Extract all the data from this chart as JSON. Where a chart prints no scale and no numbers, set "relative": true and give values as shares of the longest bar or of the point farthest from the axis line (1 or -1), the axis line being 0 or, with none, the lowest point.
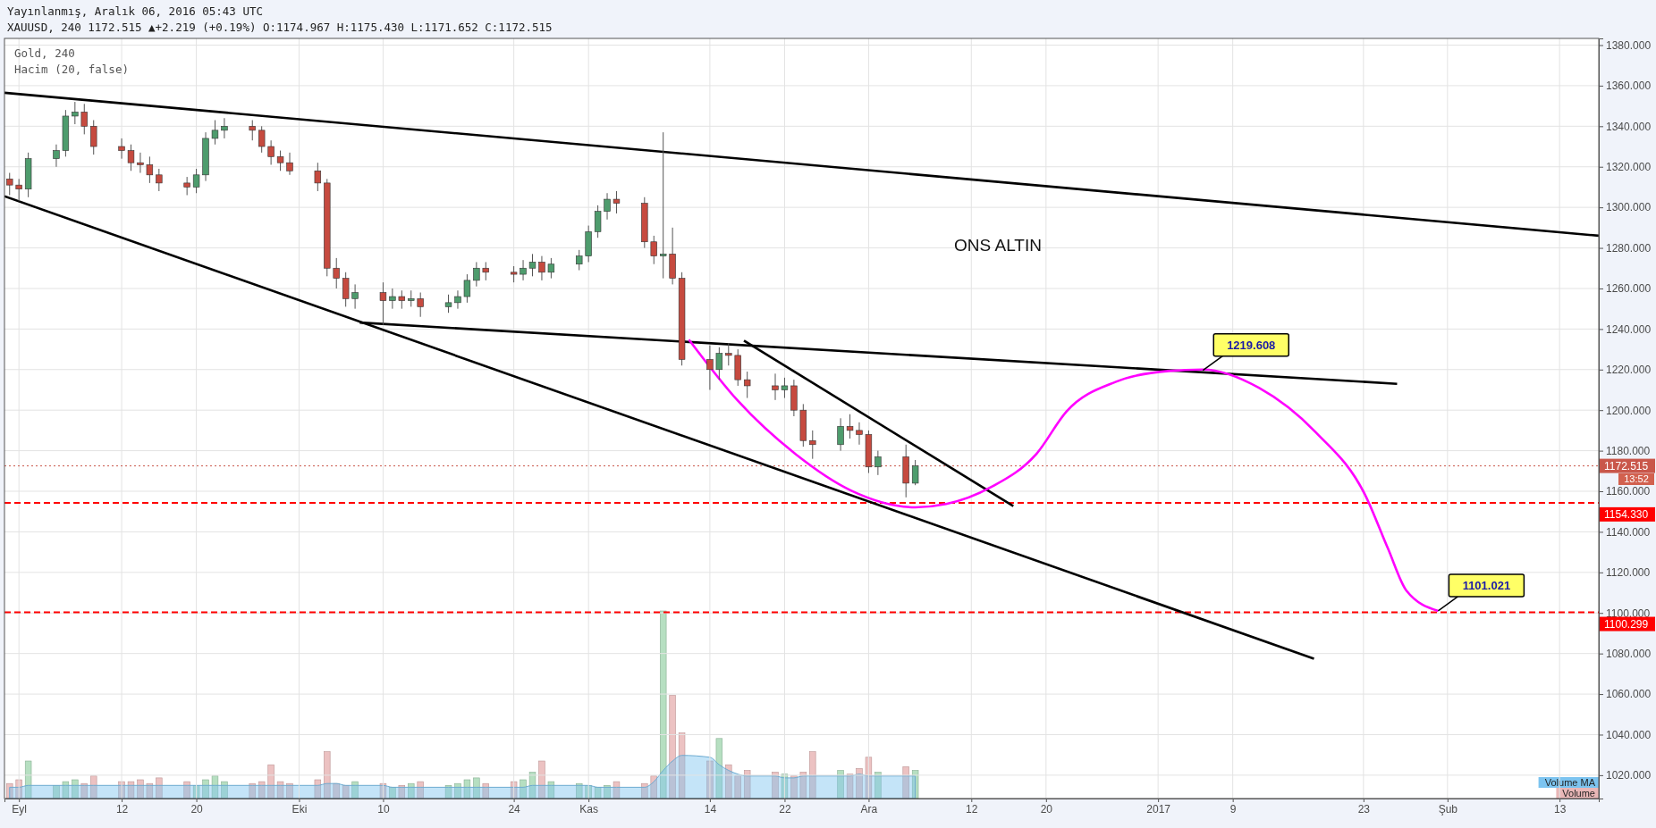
{
  "chart_data": [
    {
      "type": "candlestick",
      "title": "Yayınlanmış, Aralık 06, 2016 05:43 UTC",
      "subtitle": "XAUUSD, 240 1172.515 ▲+2.219 (+0.19%) O:1174.967 H:1175.430 L:1171.652 C:1172.515",
      "x": [
        "2016-08-31",
        "2016-09-01",
        "2016-09-02",
        "2016-09-05",
        "2016-09-06",
        "2016-09-07",
        "2016-09-08",
        "2016-09-09",
        "2016-09-12",
        "2016-09-13",
        "2016-09-14",
        "2016-09-15",
        "2016-09-16",
        "2016-09-19",
        "2016-09-20",
        "2016-09-21",
        "2016-09-22",
        "2016-09-23",
        "2016-09-26",
        "2016-09-27",
        "2016-09-28",
        "2016-09-29",
        "2016-09-30",
        "2016-10-03",
        "2016-10-04",
        "2016-10-05",
        "2016-10-06",
        "2016-10-07",
        "2016-10-10",
        "2016-10-11",
        "2016-10-12",
        "2016-10-13",
        "2016-10-14",
        "2016-10-17",
        "2016-10-18",
        "2016-10-19",
        "2016-10-20",
        "2016-10-21",
        "2016-10-24",
        "2016-10-25",
        "2016-10-26",
        "2016-10-27",
        "2016-10-28",
        "2016-10-31",
        "2016-11-01",
        "2016-11-02",
        "2016-11-03",
        "2016-11-04",
        "2016-11-07",
        "2016-11-08",
        "2016-11-09",
        "2016-11-10",
        "2016-11-11",
        "2016-11-14",
        "2016-11-15",
        "2016-11-16",
        "2016-11-17",
        "2016-11-18",
        "2016-11-21",
        "2016-11-22",
        "2016-11-23",
        "2016-11-24",
        "2016-11-25",
        "2016-11-28",
        "2016-11-29",
        "2016-11-30",
        "2016-12-01",
        "2016-12-02",
        "2016-12-05",
        "2016-12-06"
      ],
      "ohlc": [
        [
          1314,
          1317,
          1306,
          1311
        ],
        [
          1311,
          1314,
          1303,
          1309
        ],
        [
          1309,
          1327,
          1305,
          1324
        ],
        [
          1324,
          1331,
          1320,
          1328
        ],
        [
          1328,
          1348,
          1325,
          1345
        ],
        [
          1345,
          1352,
          1341,
          1347
        ],
        [
          1347,
          1351,
          1336,
          1340
        ],
        [
          1340,
          1343,
          1326,
          1330
        ],
        [
          1330,
          1334,
          1324,
          1328
        ],
        [
          1328,
          1331,
          1318,
          1322
        ],
        [
          1322,
          1327,
          1317,
          1321
        ],
        [
          1321,
          1325,
          1312,
          1316
        ],
        [
          1316,
          1319,
          1308,
          1312
        ],
        [
          1312,
          1315,
          1306,
          1310
        ],
        [
          1310,
          1319,
          1307,
          1316
        ],
        [
          1316,
          1337,
          1313,
          1334
        ],
        [
          1334,
          1343,
          1331,
          1338
        ],
        [
          1338,
          1344,
          1334,
          1340
        ],
        [
          1340,
          1343,
          1333,
          1338
        ],
        [
          1338,
          1340,
          1327,
          1330
        ],
        [
          1330,
          1333,
          1321,
          1325
        ],
        [
          1325,
          1328,
          1318,
          1322
        ],
        [
          1322,
          1327,
          1316,
          1318
        ],
        [
          1318,
          1322,
          1308,
          1312
        ],
        [
          1312,
          1314,
          1266,
          1270
        ],
        [
          1270,
          1275,
          1260,
          1265
        ],
        [
          1265,
          1268,
          1251,
          1255
        ],
        [
          1255,
          1262,
          1250,
          1258
        ],
        [
          1258,
          1263,
          1242,
          1254
        ],
        [
          1254,
          1260,
          1250,
          1256
        ],
        [
          1256,
          1259,
          1250,
          1254
        ],
        [
          1254,
          1259,
          1251,
          1255
        ],
        [
          1255,
          1258,
          1246,
          1251
        ],
        [
          1251,
          1257,
          1248,
          1253
        ],
        [
          1253,
          1259,
          1250,
          1256
        ],
        [
          1256,
          1267,
          1253,
          1264
        ],
        [
          1264,
          1273,
          1261,
          1270
        ],
        [
          1270,
          1273,
          1264,
          1268
        ],
        [
          1268,
          1271,
          1263,
          1267
        ],
        [
          1267,
          1274,
          1264,
          1270
        ],
        [
          1270,
          1277,
          1266,
          1273
        ],
        [
          1273,
          1276,
          1264,
          1268
        ],
        [
          1268,
          1275,
          1265,
          1272
        ],
        [
          1272,
          1279,
          1269,
          1276
        ],
        [
          1276,
          1291,
          1273,
          1288
        ],
        [
          1288,
          1301,
          1285,
          1298
        ],
        [
          1298,
          1307,
          1294,
          1304
        ],
        [
          1304,
          1308,
          1297,
          1302
        ],
        [
          1302,
          1305,
          1280,
          1283
        ],
        [
          1283,
          1286,
          1272,
          1276
        ],
        [
          1276,
          1337,
          1265,
          1277
        ],
        [
          1277,
          1290,
          1262,
          1265
        ],
        [
          1265,
          1268,
          1222,
          1225
        ],
        [
          1225,
          1232,
          1210,
          1220
        ],
        [
          1220,
          1231,
          1215,
          1228
        ],
        [
          1228,
          1233,
          1222,
          1227
        ],
        [
          1227,
          1230,
          1212,
          1215
        ],
        [
          1215,
          1219,
          1206,
          1212
        ],
        [
          1212,
          1218,
          1205,
          1210
        ],
        [
          1210,
          1216,
          1206,
          1212
        ],
        [
          1212,
          1215,
          1197,
          1200
        ],
        [
          1200,
          1203,
          1182,
          1185
        ],
        [
          1185,
          1190,
          1176,
          1183
        ],
        [
          1183,
          1196,
          1180,
          1192
        ],
        [
          1192,
          1198,
          1186,
          1190
        ],
        [
          1190,
          1194,
          1183,
          1188
        ],
        [
          1188,
          1190,
          1169,
          1172
        ],
        [
          1172,
          1180,
          1168,
          1177
        ],
        [
          1177,
          1183,
          1157,
          1164
        ],
        [
          1164,
          1175.43,
          1163,
          1172.515
        ]
      ],
      "series": [
        {
          "type": "line",
          "color": "#000000",
          "x": [
            "2016-08-30T10:48",
            "2017-02-17T04:48"
          ],
          "values": [
            1356.5,
            1286
          ]
        },
        {
          "type": "line",
          "color": "#000000",
          "x": [
            "2016-08-30T10:48",
            "2017-01-17T16:48"
          ],
          "values": [
            1305.5,
            1077.4
          ]
        },
        {
          "type": "line",
          "color": "#000000",
          "x": [
            "2016-10-07T12:00",
            "2017-01-26T14:24"
          ],
          "values": [
            1243.2,
            1213
          ]
        },
        {
          "type": "line",
          "color": "#000000",
          "x": [
            "2016-11-17T15:36",
            "2016-12-16T12:00"
          ],
          "values": [
            1234.3,
            1152.7
          ]
        },
        {
          "type": "line",
          "color": "#ff00ff",
          "x": [
            "2016-11-11T18:00",
            "2016-11-17",
            "2016-11-23T02:24",
            "2016-11-29T02:24",
            "2016-12-06",
            "2016-12-09T07:12",
            "2016-12-14T02:24",
            "2016-12-19",
            "2016-12-22T04:48",
            "2016-12-27T12:00",
            "2017-01-02T02:24",
            "2017-01-05T19:12",
            "2017-01-11T19:12",
            "2017-01-17T21:36",
            "2017-01-23T04:48",
            "2017-01-25T14:24",
            "2017-01-27T14:24",
            "2017-01-31"
          ],
          "values": [
            1234.8,
            1204.6,
            1178.6,
            1160.4,
            1152.1,
            1153.7,
            1162,
            1178.6,
            1199.4,
            1214,
            1219.3,
            1220,
            1211,
            1189,
            1158,
            1132,
            1111,
            1101
          ]
        }
      ],
      "xlim": [
        "2016-08-30T10:48",
        "2017-02-17T04:48"
      ],
      "ylim": [
        1008.5,
        1383.3
      ],
      "xticks": [
        {
          "value": "2016-09-01",
          "label": "Eyl"
        },
        {
          "value": "2016-09-12",
          "label": "12"
        },
        {
          "value": "2016-09-20",
          "label": "20"
        },
        {
          "value": "2016-10-01",
          "label": "Eki"
        },
        {
          "value": "2016-10-10",
          "label": "10"
        },
        {
          "value": "2016-10-24",
          "label": "24"
        },
        {
          "value": "2016-11-01",
          "label": "Kas"
        },
        {
          "value": "2016-11-14",
          "label": "14"
        },
        {
          "value": "2016-11-22",
          "label": "22"
        },
        {
          "value": "2016-12-01",
          "label": "Ara"
        },
        {
          "value": "2016-12-12",
          "label": "12"
        },
        {
          "value": "2016-12-20",
          "label": "20"
        },
        {
          "value": "2017-01-01",
          "label": "2017"
        },
        {
          "value": "2017-01-09",
          "label": "9"
        },
        {
          "value": "2017-01-23",
          "label": "23"
        },
        {
          "value": "2017-02-01",
          "label": "Şub"
        },
        {
          "value": "2017-02-13",
          "label": "13"
        }
      ],
      "yticks": [
        {
          "value": 1020,
          "label": "1020.000"
        },
        {
          "value": 1040,
          "label": "1040.000"
        },
        {
          "value": 1060,
          "label": "1060.000"
        },
        {
          "value": 1080,
          "label": "1080.000"
        },
        {
          "value": 1100,
          "label": "1100.000"
        },
        {
          "value": 1120,
          "label": "1120.000"
        },
        {
          "value": 1140,
          "label": "1140.000"
        },
        {
          "value": 1160,
          "label": "1160.000"
        },
        {
          "value": 1180,
          "label": "1180.000"
        },
        {
          "value": 1200,
          "label": "1200.000"
        },
        {
          "value": 1220,
          "label": "1220.000"
        },
        {
          "value": 1240,
          "label": "1240.000"
        },
        {
          "value": 1260,
          "label": "1260.000"
        },
        {
          "value": 1280,
          "label": "1280.000"
        },
        {
          "value": 1300,
          "label": "1300.000"
        },
        {
          "value": 1320,
          "label": "1320.000"
        },
        {
          "value": 1340,
          "label": "1340.000"
        },
        {
          "value": 1360,
          "label": "1360.000"
        },
        {
          "value": 1380,
          "label": "1380.000"
        }
      ],
      "grid": true,
      "ref_lines": [
        {
          "axis": "y",
          "value": 1172.515,
          "label": "1172.515",
          "color": "#c9574a",
          "line_style": "dotted"
        },
        {
          "axis": "y",
          "value": 1154.33,
          "label": "1154.330",
          "color": "#ff0000",
          "line_style": "dashed"
        },
        {
          "axis": "y",
          "value": 1100.299,
          "label": "1100.299",
          "color": "#ff0000",
          "line_style": "dashed"
        }
      ],
      "annotations": [
        "Gold, 240",
        "Hacim (20, false)",
        "ONS ALTIN",
        "13:52",
        {
          "text": "1219.608",
          "x": "2017-01-05T19:12",
          "y": 1219.608
        },
        {
          "text": "1101.021",
          "x": "2017-01-31",
          "y": 1101.021
        }
      ]
    },
    {
      "type": "bar",
      "relative": true,
      "legend": "bottom right",
      "xlim": [
        "2016-08-30T10:48",
        "2017-02-17T04:48"
      ],
      "x": [
        "2016-08-31",
        "2016-09-01",
        "2016-09-02",
        "2016-09-05",
        "2016-09-06",
        "2016-09-07",
        "2016-09-08",
        "2016-09-09",
        "2016-09-12",
        "2016-09-13",
        "2016-09-14",
        "2016-09-15",
        "2016-09-16",
        "2016-09-19",
        "2016-09-20",
        "2016-09-21",
        "2016-09-22",
        "2016-09-23",
        "2016-09-26",
        "2016-09-27",
        "2016-09-28",
        "2016-09-29",
        "2016-09-30",
        "2016-10-03",
        "2016-10-04",
        "2016-10-05",
        "2016-10-06",
        "2016-10-07",
        "2016-10-10",
        "2016-10-11",
        "2016-10-12",
        "2016-10-13",
        "2016-10-14",
        "2016-10-17",
        "2016-10-18",
        "2016-10-19",
        "2016-10-20",
        "2016-10-21",
        "2016-10-24",
        "2016-10-25",
        "2016-10-26",
        "2016-10-27",
        "2016-10-28",
        "2016-10-31",
        "2016-11-01",
        "2016-11-02",
        "2016-11-03",
        "2016-11-04",
        "2016-11-07",
        "2016-11-08",
        "2016-11-09",
        "2016-11-10",
        "2016-11-11",
        "2016-11-14",
        "2016-11-15",
        "2016-11-16",
        "2016-11-17",
        "2016-11-18",
        "2016-11-21",
        "2016-11-22",
        "2016-11-23",
        "2016-11-24",
        "2016-11-25",
        "2016-11-28",
        "2016-11-29",
        "2016-11-30",
        "2016-12-01",
        "2016-12-02",
        "2016-12-05",
        "2016-12-06"
      ],
      "series": [
        {
          "name": "Volume MA",
          "type": "area",
          "color": "#7cc4f0",
          "values": [
            0.06,
            0.06,
            0.07,
            0.07,
            0.07,
            0.07,
            0.07,
            0.07,
            0.07,
            0.07,
            0.07,
            0.07,
            0.07,
            0.07,
            0.07,
            0.07,
            0.07,
            0.07,
            0.07,
            0.07,
            0.07,
            0.07,
            0.07,
            0.07,
            0.08,
            0.08,
            0.07,
            0.07,
            0.07,
            0.06,
            0.06,
            0.06,
            0.06,
            0.06,
            0.06,
            0.06,
            0.06,
            0.06,
            0.06,
            0.06,
            0.07,
            0.07,
            0.07,
            0.07,
            0.07,
            0.06,
            0.06,
            0.06,
            0.06,
            0.09,
            0.15,
            0.2,
            0.23,
            0.22,
            0.18,
            0.15,
            0.13,
            0.12,
            0.12,
            0.11,
            0.11,
            0.12,
            0.12,
            0.12,
            0.12,
            0.13,
            0.12,
            0.12,
            0.12,
            0.12
          ]
        },
        {
          "name": "Volume",
          "type": "bar",
          "colors": [
            "#e9b7b7",
            "#e9b7b7",
            "#a9d9b6",
            "#a9d9b6",
            "#a9d9b6",
            "#a9d9b6",
            "#e9b7b7",
            "#e9b7b7",
            "#e9b7b7",
            "#e9b7b7",
            "#e9b7b7",
            "#e9b7b7",
            "#e9b7b7",
            "#e9b7b7",
            "#a9d9b6",
            "#a9d9b6",
            "#a9d9b6",
            "#a9d9b6",
            "#e9b7b7",
            "#e9b7b7",
            "#e9b7b7",
            "#e9b7b7",
            "#e9b7b7",
            "#e9b7b7",
            "#e9b7b7",
            "#e9b7b7",
            "#e9b7b7",
            "#a9d9b6",
            "#e9b7b7",
            "#a9d9b6",
            "#e9b7b7",
            "#a9d9b6",
            "#e9b7b7",
            "#a9d9b6",
            "#a9d9b6",
            "#a9d9b6",
            "#a9d9b6",
            "#e9b7b7",
            "#e9b7b7",
            "#a9d9b6",
            "#a9d9b6",
            "#e9b7b7",
            "#a9d9b6",
            "#a9d9b6",
            "#a9d9b6",
            "#a9d9b6",
            "#a9d9b6",
            "#e9b7b7",
            "#e9b7b7",
            "#e9b7b7",
            "#a9d9b6",
            "#e9b7b7",
            "#e9b7b7",
            "#e9b7b7",
            "#a9d9b6",
            "#e9b7b7",
            "#e9b7b7",
            "#e9b7b7",
            "#e9b7b7",
            "#a9d9b6",
            "#e9b7b7",
            "#e9b7b7",
            "#e9b7b7",
            "#a9d9b6",
            "#e9b7b7",
            "#e9b7b7",
            "#e9b7b7",
            "#a9d9b6",
            "#e9b7b7",
            "#a9d9b6"
          ],
          "values": [
            0.08,
            0.1,
            0.2,
            0.07,
            0.09,
            0.1,
            0.08,
            0.12,
            0.09,
            0.09,
            0.1,
            0.08,
            0.11,
            0.09,
            0.07,
            0.1,
            0.12,
            0.09,
            0.08,
            0.09,
            0.18,
            0.09,
            0.08,
            0.1,
            0.25,
            0.08,
            0.07,
            0.09,
            0.08,
            0.06,
            0.07,
            0.08,
            0.09,
            0.07,
            0.08,
            0.1,
            0.11,
            0.08,
            0.09,
            0.1,
            0.14,
            0.2,
            0.09,
            0.08,
            0.07,
            0.06,
            0.07,
            0.09,
            0.08,
            0.12,
            1.0,
            0.55,
            0.35,
            0.2,
            0.32,
            0.18,
            0.12,
            0.15,
            0.14,
            0.13,
            0.12,
            0.14,
            0.25,
            0.15,
            0.13,
            0.16,
            0.22,
            0.14,
            0.17,
            0.15
          ]
        }
      ]
    }
  ]
}
